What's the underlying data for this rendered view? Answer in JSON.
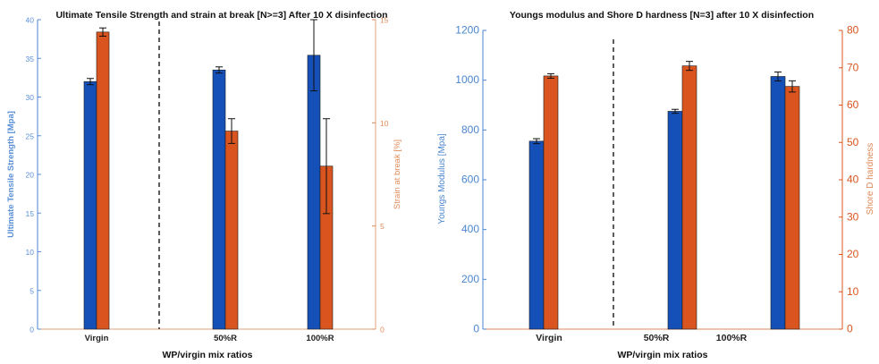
{
  "chart_data": [
    {
      "type": "bar",
      "title": "Ultimate Tensile Strength and strain at break [N>=3] After 10 X disinfection",
      "xlabel": "WP/virgin mix ratios",
      "ylabel_left": "Ultimate Tensile Strength [Mpa]",
      "ylabel_right": "Strain at break [%]",
      "categories": [
        "Virgin",
        "50%R",
        "100%R"
      ],
      "ylim_left": [
        0,
        40
      ],
      "ylim_right": [
        0,
        15
      ],
      "yticks_left": [
        "0",
        "5",
        "10",
        "15",
        "20",
        "25",
        "30",
        "35",
        "40"
      ],
      "yticks_right": [
        "0",
        "5",
        "10",
        "15"
      ],
      "colors": {
        "left": "#1550B8",
        "right": "#D9541E",
        "left_axis": "#5A8FD8",
        "right_axis": "#E08A58"
      },
      "series": [
        {
          "axis": "left",
          "values": [
            32.0,
            33.5,
            35.4
          ],
          "errors": [
            0.4,
            0.4,
            4.6
          ]
        },
        {
          "axis": "right",
          "values": [
            14.4,
            9.6,
            7.9
          ],
          "errors": [
            0.2,
            0.6,
            2.3
          ]
        }
      ]
    },
    {
      "type": "bar",
      "title": "Youngs modulus and Shore D hardness [N=3] after 10 X disinfection",
      "xlabel": "WP/virgin mix ratios",
      "ylabel_left": "Youngs Modulus [Mpa]",
      "ylabel_right": "Shore D hardness",
      "categories": [
        "Virgin",
        "50%R",
        "100%R"
      ],
      "ylim_left": [
        0,
        1200
      ],
      "ylim_right": [
        0,
        80
      ],
      "yticks_left": [
        "0",
        "200",
        "400",
        "600",
        "800",
        "1000",
        "1200"
      ],
      "yticks_right": [
        "0",
        "10",
        "20",
        "30",
        "40",
        "50",
        "60",
        "70",
        "80"
      ],
      "colors": {
        "left": "#1550B8",
        "right": "#D9541E",
        "left_axis": "#4A86D0",
        "right_axis": "#D9541E"
      },
      "series": [
        {
          "axis": "left",
          "values": [
            755,
            875,
            1015
          ],
          "errors": [
            10,
            8,
            18
          ]
        },
        {
          "axis": "right",
          "values": [
            67.8,
            70.5,
            65.0
          ],
          "errors": [
            0.6,
            1.2,
            1.5
          ]
        }
      ]
    }
  ]
}
